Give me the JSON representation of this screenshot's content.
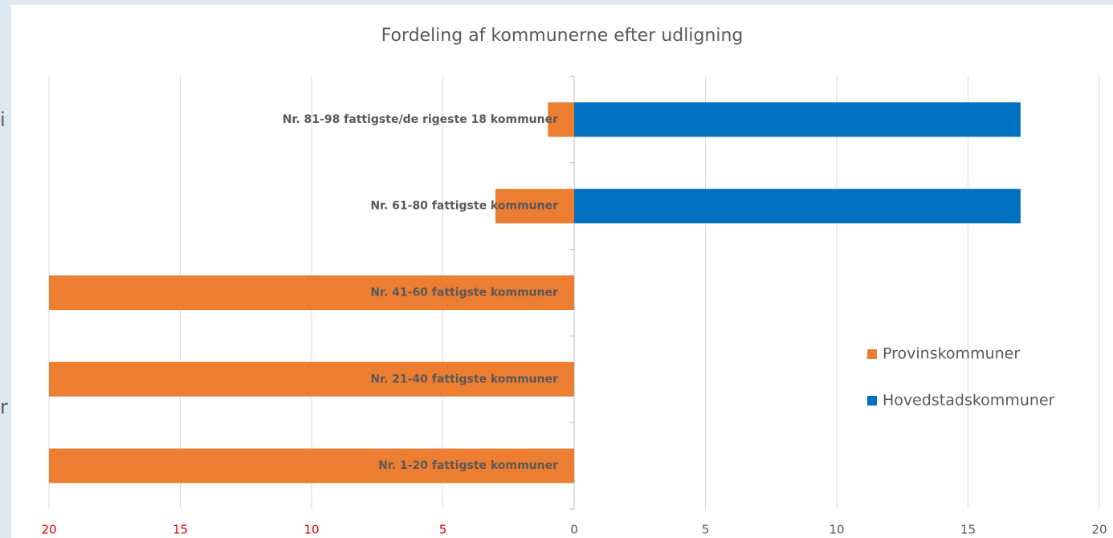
{
  "chart_data": {
    "type": "bar",
    "orientation": "horizontal",
    "title": "Fordeling af kommunerne efter udligning",
    "categories": [
      "Nr. 1-20 fattigste kommuner",
      "Nr. 21-40 fattigste kommuner",
      "Nr. 41-60 fattigste kommuner",
      "Nr. 61-80 fattigste kommuner",
      "Nr. 81-98 fattigste/de rigeste 18 kommuner"
    ],
    "series": [
      {
        "name": "Provinskommuner",
        "color": "#ed7d31",
        "values": [
          -20,
          -20,
          -20,
          -3,
          -1
        ]
      },
      {
        "name": "Hovedstadskommuner",
        "color": "#0070c0",
        "values": [
          0,
          0,
          0,
          17,
          17
        ]
      }
    ],
    "xlim": [
      -20,
      20
    ],
    "xticks": [
      {
        "value": -20,
        "label": "20"
      },
      {
        "value": -15,
        "label": "15"
      },
      {
        "value": -10,
        "label": "10"
      },
      {
        "value": -5,
        "label": "5"
      },
      0,
      5,
      10,
      15,
      20
    ],
    "xtick_label_colors": [
      "#e00000",
      "#e00000",
      "#e00000",
      "#e00000",
      "#595959",
      "#595959",
      "#595959",
      "#595959",
      "#595959"
    ],
    "grid": true,
    "legend": "right",
    "background_text": [
      "i",
      "r"
    ]
  }
}
